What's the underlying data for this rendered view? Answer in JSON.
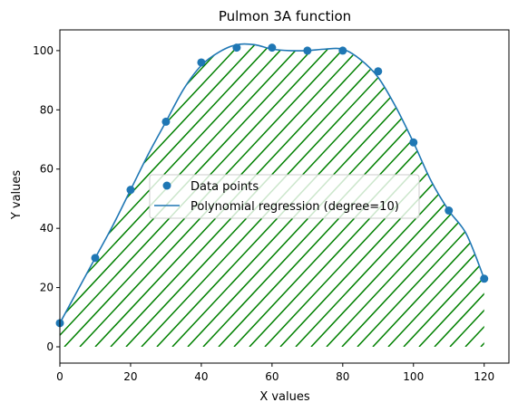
{
  "chart_data": {
    "type": "scatter",
    "title": "Pulmon 3A function",
    "xlabel": "X values",
    "ylabel": "Y values",
    "xlim": [
      0,
      127
    ],
    "ylim": [
      -5.5,
      107
    ],
    "x_ticks": [
      0,
      20,
      40,
      60,
      80,
      100,
      120
    ],
    "y_ticks": [
      0,
      20,
      40,
      60,
      80,
      100
    ],
    "grid": false,
    "legend_position": "center",
    "colors": {
      "points": "#1f77b4",
      "curve": "#1f77b4",
      "hatch": "#008000"
    },
    "series": [
      {
        "name": "Data points",
        "kind": "scatter",
        "x": [
          0,
          10,
          20,
          30,
          40,
          50,
          60,
          70,
          80,
          90,
          100,
          110,
          120
        ],
        "y": [
          8,
          30,
          53,
          76,
          96,
          101,
          101,
          100,
          100,
          93,
          69,
          46,
          23
        ]
      },
      {
        "name": "Polynomial regression (degree=10)",
        "kind": "line",
        "x": [
          0,
          5,
          10,
          15,
          20,
          25,
          30,
          35,
          40,
          45,
          50,
          55,
          60,
          65,
          70,
          75,
          80,
          85,
          90,
          95,
          100,
          105,
          110,
          115,
          120
        ],
        "y": [
          8,
          19,
          30,
          41,
          53,
          65,
          76,
          87,
          95,
          99.5,
          102,
          102,
          100.5,
          100,
          100,
          100.5,
          100.5,
          97,
          91,
          81,
          69,
          56,
          46,
          38,
          23
        ]
      }
    ]
  }
}
